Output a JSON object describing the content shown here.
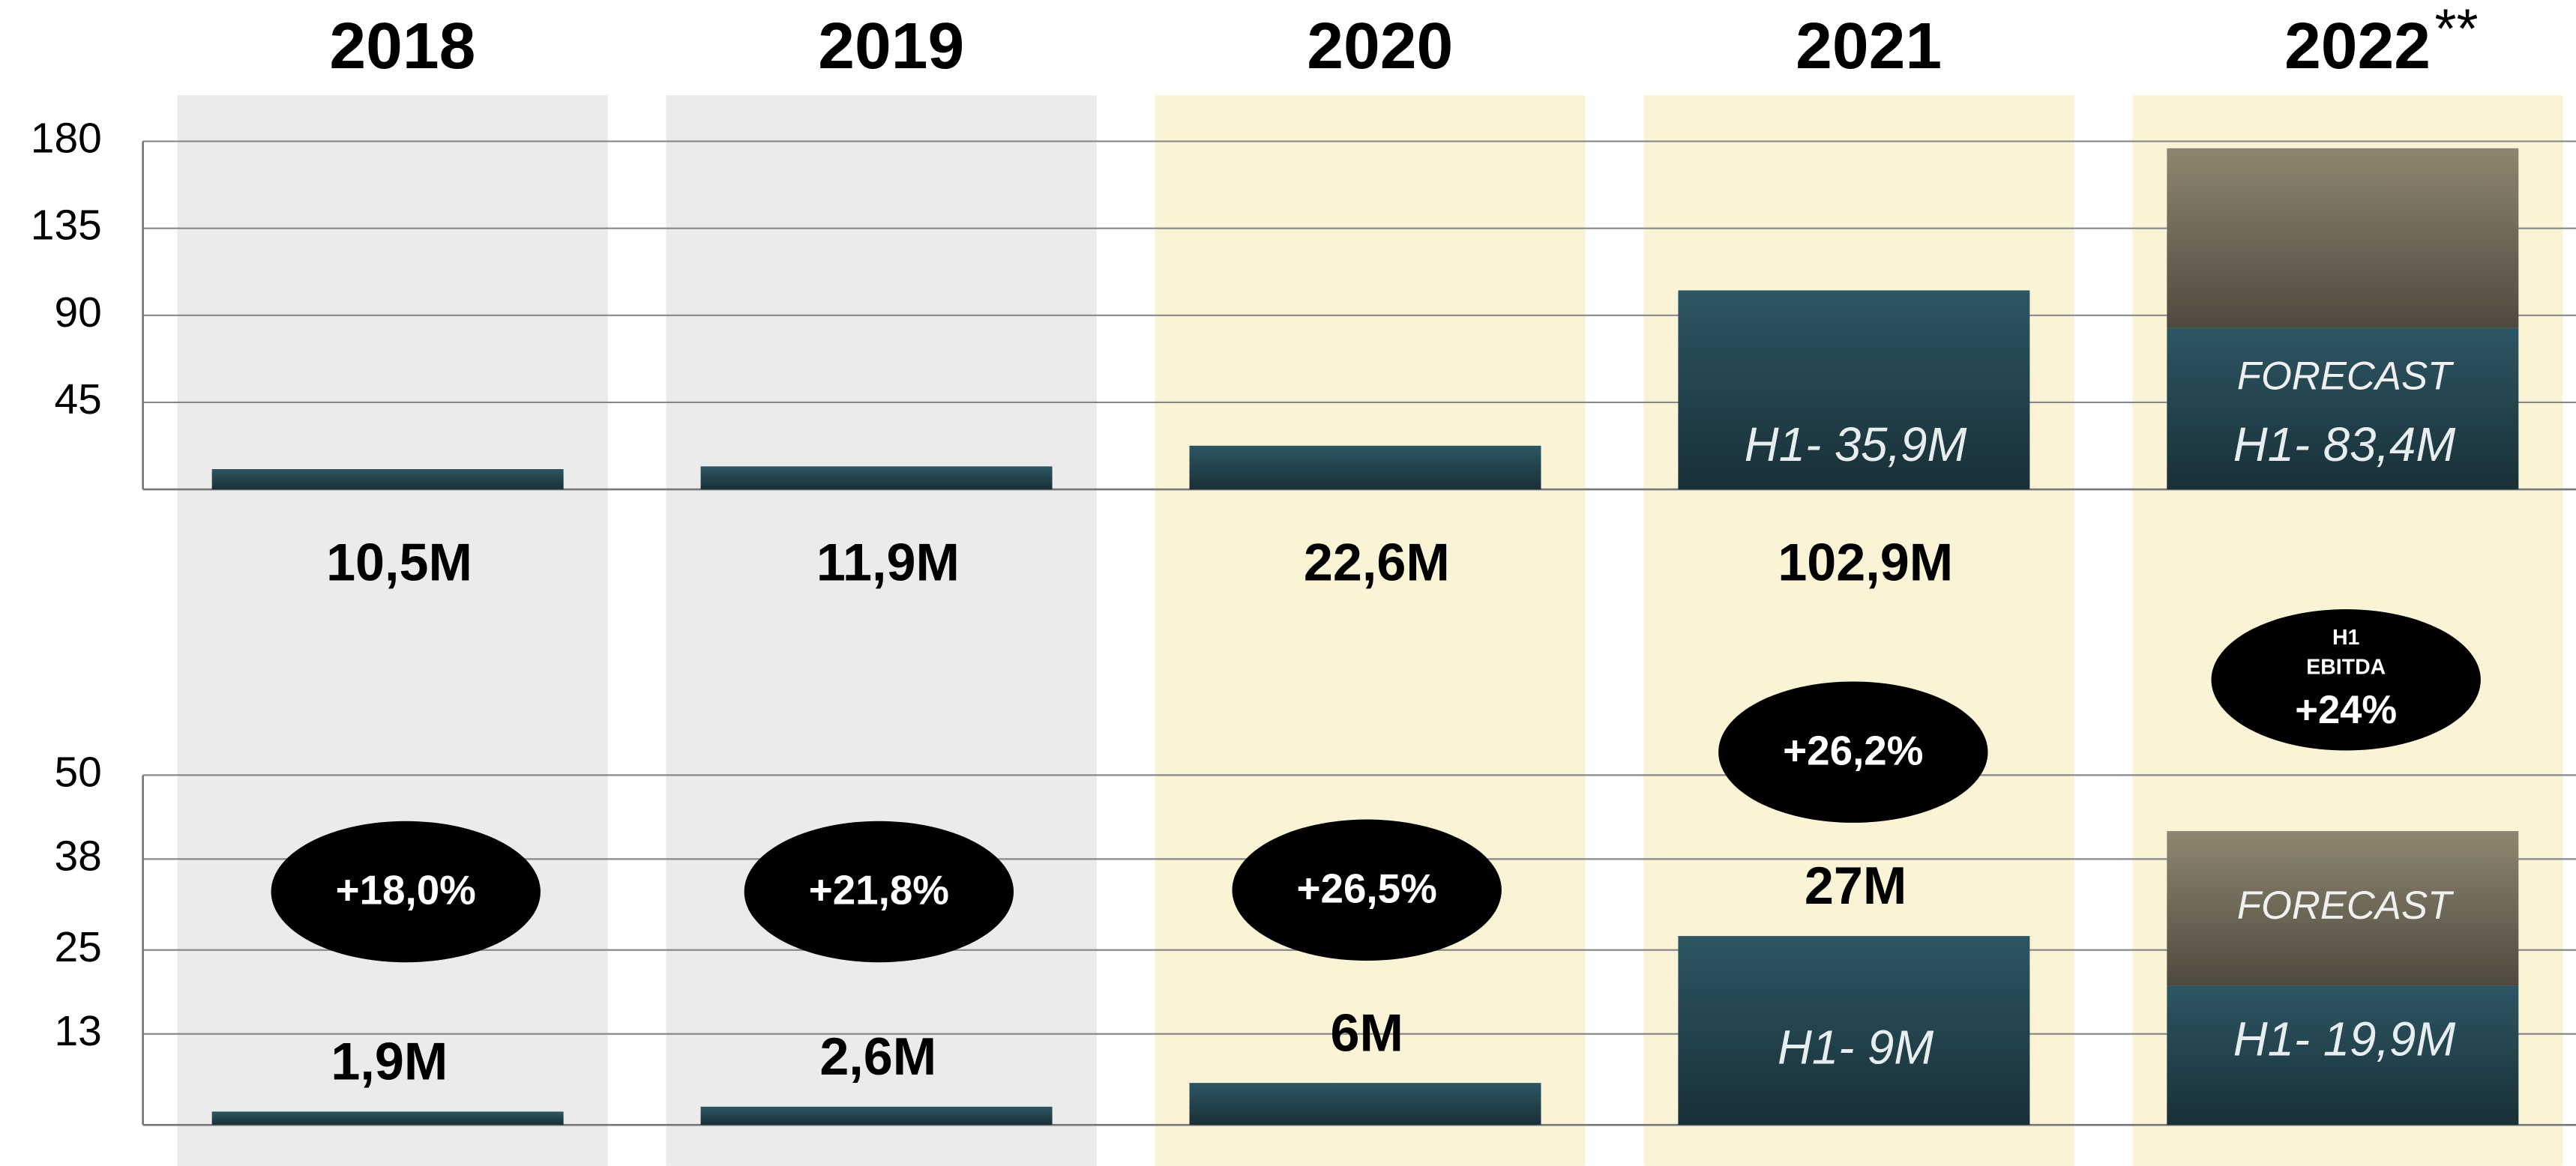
{
  "chart_data": [
    {
      "type": "bar",
      "categories": [
        "2018",
        "2019",
        "2020",
        "2021",
        "2022"
      ],
      "category_note": "**",
      "band_colors": [
        "#ebebeb",
        "#ebebeb",
        "#faf3d6",
        "#faf3d6",
        "#faf3d6"
      ],
      "ylim": [
        0,
        180
      ],
      "yticks": [
        45,
        90,
        135,
        180
      ],
      "grid": true,
      "stacked": true,
      "series": [
        {
          "color": "#2d5663",
          "values": [
            10.5,
            11.9,
            22.6,
            102.9,
            83.4
          ],
          "value_labels": [
            "10,5M",
            "11,9M",
            "22,6M",
            "102,9M",
            "H1- 83,4M"
          ]
        },
        {
          "color": "#8e8670",
          "values": [
            null,
            null,
            null,
            null,
            93
          ],
          "value_labels": [
            null,
            null,
            null,
            null,
            "FORECAST"
          ]
        }
      ],
      "notes": [
        null,
        null,
        null,
        "H1- 35,9M",
        null
      ]
    },
    {
      "type": "bar",
      "ylim": [
        0,
        50
      ],
      "yticks": [
        13,
        25,
        38,
        50
      ],
      "grid": true,
      "stacked": true,
      "series": [
        {
          "color": "#2d5663",
          "values": [
            1.9,
            2.6,
            6,
            27,
            19.9
          ],
          "value_labels": [
            "1,9M",
            "2,6M",
            "6M",
            "27M",
            "H1- 19,9M"
          ]
        },
        {
          "color": "#8e8670",
          "values": [
            null,
            null,
            null,
            null,
            22.1
          ],
          "value_labels": [
            null,
            null,
            null,
            null,
            "FORECAST"
          ]
        }
      ],
      "notes": [
        null,
        null,
        null,
        "H1- 9M",
        null
      ],
      "margins": [
        "+18,0%",
        "+21,8%",
        "+26,5%",
        "+26,2%",
        "+24%"
      ],
      "margin_caption": [
        "H1",
        "EBITDA"
      ]
    }
  ]
}
